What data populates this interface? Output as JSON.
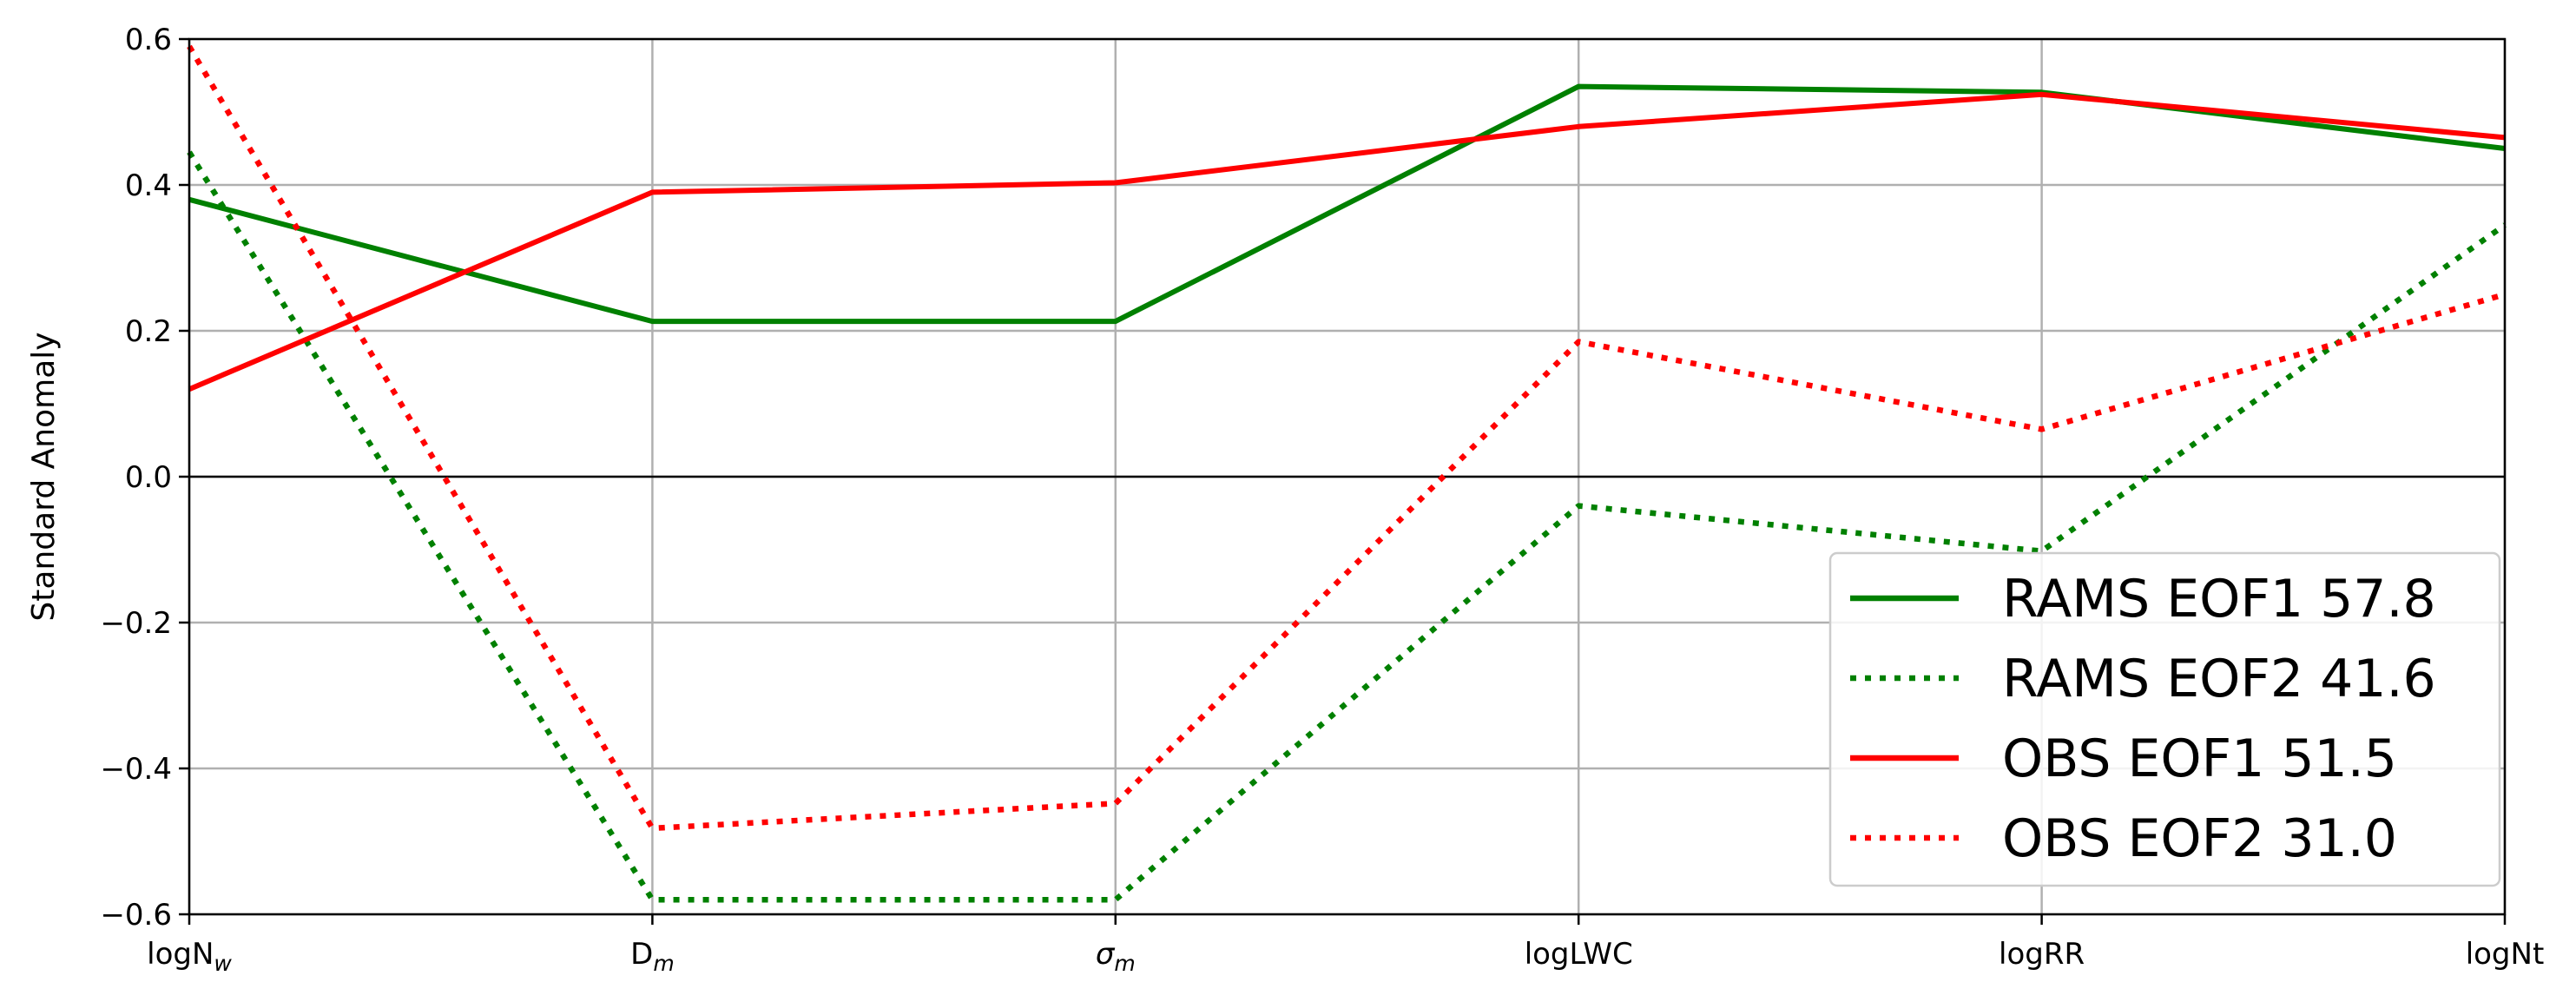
{
  "chart_data": {
    "type": "line",
    "title": "",
    "xlabel": "",
    "ylabel": "Standard Anomaly",
    "ylim": [
      -0.6,
      0.6
    ],
    "yticks": [
      -0.6,
      -0.4,
      -0.2,
      0.0,
      0.2,
      0.4,
      0.6
    ],
    "ytick_labels": [
      "−0.6",
      "−0.4",
      "−0.2",
      "0.0",
      "0.2",
      "0.4",
      "0.6"
    ],
    "categories": [
      {
        "base": "logN",
        "sub": "w",
        "sub_style": "italic"
      },
      {
        "base": "D",
        "sub": "m",
        "sub_style": "italic"
      },
      {
        "base": "σ",
        "sub": "m",
        "sub_style": "italic",
        "base_style": "italic"
      },
      {
        "base": "logLWC",
        "sub": ""
      },
      {
        "base": "logRR",
        "sub": ""
      },
      {
        "base": "logNt",
        "sub": ""
      }
    ],
    "grid": true,
    "zero_line": true,
    "legend_position": "lower-right",
    "series": [
      {
        "name": "RAMS EOF1 57.8",
        "color": "#008000",
        "style": "solid",
        "values": [
          0.38,
          0.213,
          0.213,
          0.535,
          0.527,
          0.45
        ]
      },
      {
        "name": "RAMS EOF2 41.6",
        "color": "#008000",
        "style": "dotted",
        "values": [
          0.445,
          -0.58,
          -0.58,
          -0.04,
          -0.102,
          0.345
        ]
      },
      {
        "name": "OBS EOF1 51.5",
        "color": "#ff0000",
        "style": "solid",
        "values": [
          0.12,
          0.39,
          0.403,
          0.48,
          0.524,
          0.465
        ]
      },
      {
        "name": "OBS EOF2 31.0",
        "color": "#ff0000",
        "style": "dotted",
        "values": [
          0.59,
          -0.482,
          -0.448,
          0.185,
          0.065,
          0.25
        ]
      }
    ]
  }
}
